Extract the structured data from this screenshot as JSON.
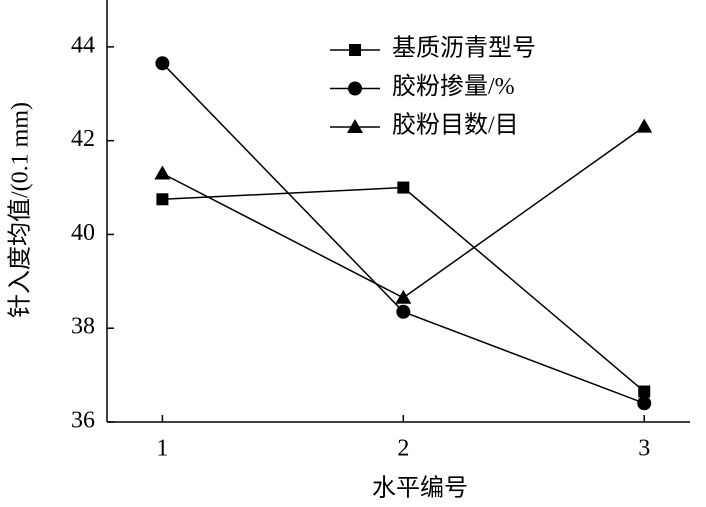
{
  "chart_data": {
    "type": "line",
    "x_label": "水平编号",
    "y_label": "针入度均值/(0.1 mm)",
    "x": [
      1,
      2,
      3
    ],
    "xlim": [
      0.77,
      3.19
    ],
    "xticks": [
      1,
      2,
      3
    ],
    "ylim": [
      36,
      45
    ],
    "yticks": [
      36,
      38,
      40,
      42,
      44
    ],
    "legend": "upper-right",
    "series": [
      {
        "name": "基质沥青型号",
        "color": "#000000",
        "marker": "square",
        "values": [
          40.75,
          41.0,
          36.65
        ]
      },
      {
        "name": "胶粉掺量/%",
        "color": "#000000",
        "marker": "circle",
        "values": [
          43.65,
          38.35,
          36.4
        ]
      },
      {
        "name": "胶粉目数/目",
        "color": "#000000",
        "marker": "triangle",
        "values": [
          41.3,
          38.65,
          42.3
        ]
      }
    ]
  }
}
